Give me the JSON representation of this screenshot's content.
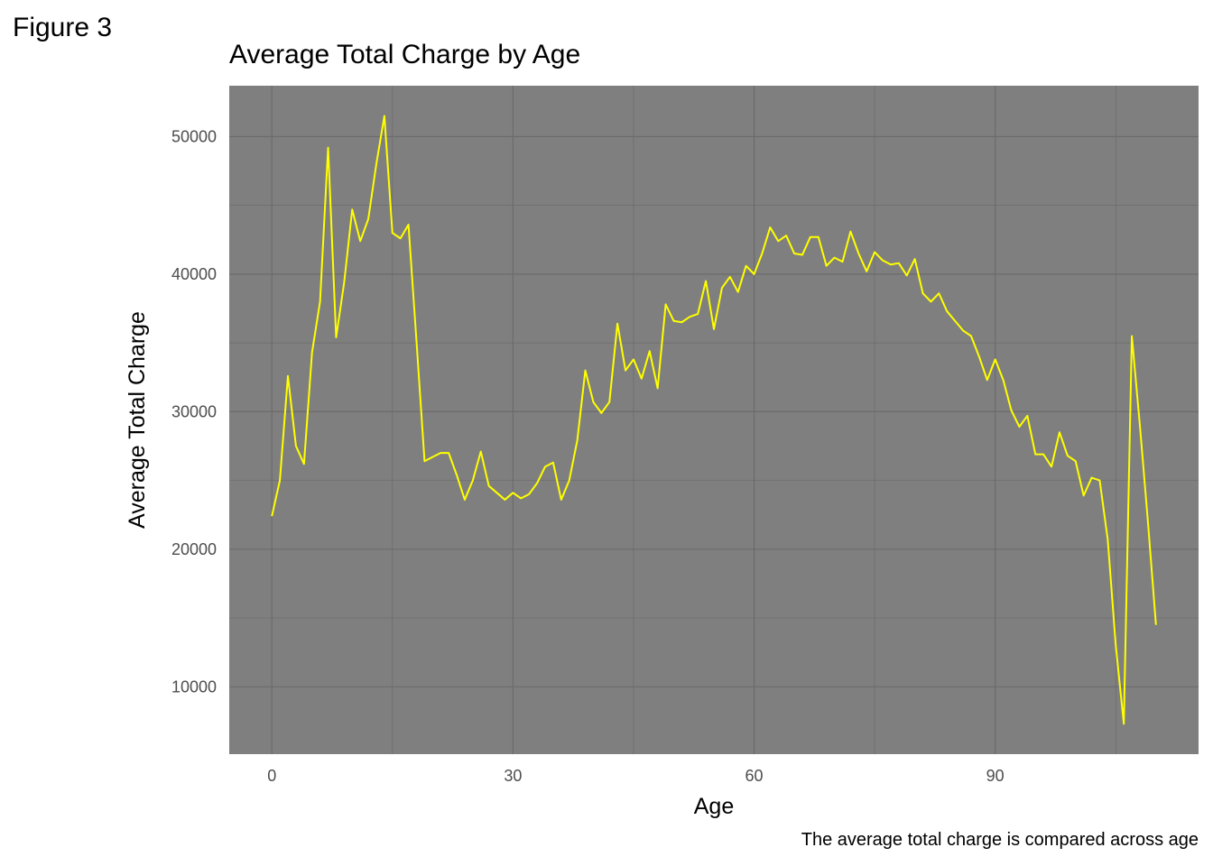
{
  "figure_label": "Figure 3",
  "chart_data": {
    "type": "line",
    "title": "Average Total Charge by Age",
    "xlabel": "Age",
    "ylabel": "Average Total Charge",
    "caption": "The average total charge is compared across age",
    "xlim": [
      -5.3,
      115.3
    ],
    "ylim": [
      5100,
      53700
    ],
    "x_ticks": [
      0,
      30,
      60,
      90
    ],
    "y_ticks": [
      10000,
      20000,
      30000,
      40000,
      50000
    ],
    "grid": true,
    "panel_color": "#7f7f7f",
    "grid_color": "#6b6b6b",
    "line_color": "#ffff00",
    "x": [
      0,
      1,
      2,
      3,
      4,
      5,
      6,
      7,
      8,
      9,
      10,
      11,
      12,
      13,
      14,
      15,
      16,
      17,
      18,
      19,
      20,
      21,
      22,
      23,
      24,
      25,
      26,
      27,
      28,
      29,
      30,
      31,
      32,
      33,
      34,
      35,
      36,
      37,
      38,
      39,
      40,
      41,
      42,
      43,
      44,
      45,
      46,
      47,
      48,
      49,
      50,
      51,
      52,
      53,
      54,
      55,
      56,
      57,
      58,
      59,
      60,
      61,
      62,
      63,
      64,
      65,
      66,
      67,
      68,
      69,
      70,
      71,
      72,
      73,
      74,
      75,
      76,
      77,
      78,
      79,
      80,
      81,
      82,
      83,
      84,
      85,
      86,
      87,
      88,
      89,
      90,
      91,
      92,
      93,
      94,
      95,
      96,
      97,
      98,
      99,
      100,
      101,
      102,
      103,
      104,
      105,
      106,
      107,
      108,
      109,
      110
    ],
    "values": [
      22400,
      25000,
      32600,
      27500,
      26200,
      34300,
      38000,
      49200,
      35400,
      39400,
      44700,
      42400,
      44000,
      48000,
      51500,
      43000,
      42600,
      43600,
      35100,
      26400,
      26700,
      27000,
      27000,
      25400,
      23600,
      25000,
      27100,
      24600,
      24100,
      23600,
      24100,
      23700,
      24000,
      24800,
      26000,
      26300,
      23600,
      25000,
      27900,
      33000,
      30700,
      29900,
      30700,
      36400,
      33000,
      33800,
      32400,
      34400,
      31700,
      37800,
      36600,
      36500,
      36900,
      37100,
      39500,
      36000,
      39000,
      39800,
      38700,
      40600,
      40000,
      41500,
      43400,
      42400,
      42800,
      41500,
      41400,
      42700,
      42700,
      40600,
      41200,
      40900,
      43100,
      41500,
      40200,
      41600,
      41000,
      40700,
      40800,
      39900,
      41100,
      38600,
      38000,
      38600,
      37300,
      36600,
      35900,
      35500,
      34000,
      32300,
      33800,
      32300,
      30100,
      28900,
      29700,
      26900,
      26900,
      26000,
      28500,
      26800,
      26400,
      23900,
      25200,
      25000,
      20700,
      13000,
      7300,
      35500,
      29000,
      22000,
      14500
    ]
  }
}
